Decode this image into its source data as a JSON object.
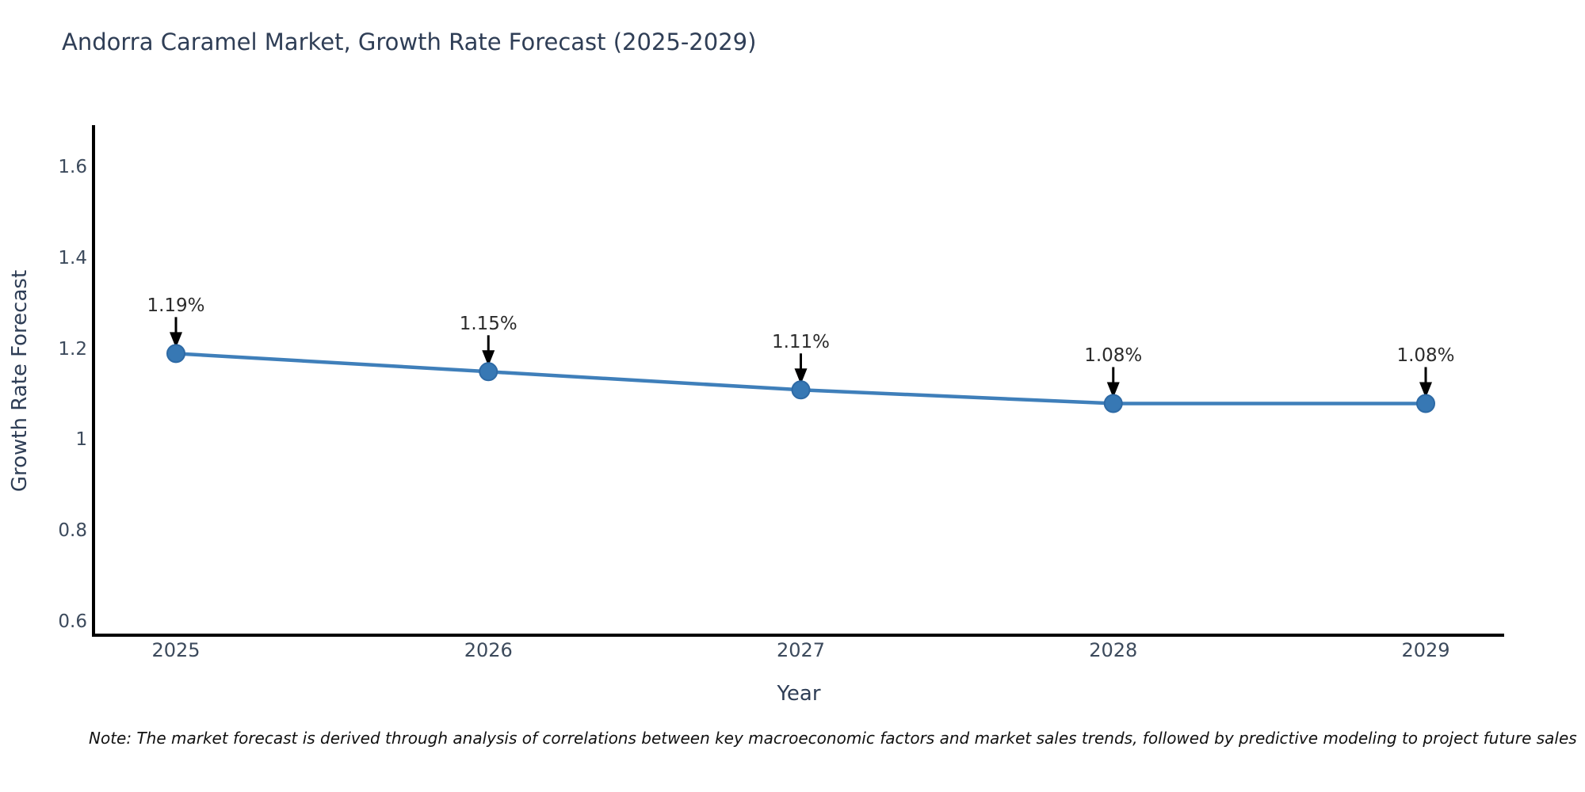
{
  "title": "Andorra Caramel Market, Growth Rate Forecast (2025-2029)",
  "note": "Note: The market forecast is derived through analysis of correlations between key macroeconomic factors and market sales trends, followed by predictive modeling to project future sales",
  "chart_data": {
    "type": "line",
    "title": "Andorra Caramel Market, Growth Rate Forecast (2025-2029)",
    "xlabel": "Year",
    "ylabel": "Growth Rate Forecast",
    "x": [
      2025,
      2026,
      2027,
      2028,
      2029
    ],
    "x_labels": [
      "2025",
      "2026",
      "2027",
      "2028",
      "2029"
    ],
    "values": [
      1.19,
      1.15,
      1.11,
      1.08,
      1.08
    ],
    "point_labels": [
      "1.19%",
      "1.15%",
      "1.11%",
      "1.08%",
      "1.08%"
    ],
    "ytick_values": [
      0.6,
      0.8,
      1.0,
      1.2,
      1.4,
      1.6
    ],
    "ytick_labels": [
      "0.6",
      "0.8",
      "1",
      "1.2",
      "1.4",
      "1.6"
    ],
    "ylim": [
      0.57,
      1.69
    ],
    "grid": false,
    "legend": "none",
    "annotation_arrows": true,
    "colors": {
      "line": "#3f7fba",
      "marker_fill": "#3778b4",
      "marker_edge": "#2e6aa5",
      "axis_line": "#000000",
      "title_text": "#2f3e56",
      "tick_text": "#3c4a5c",
      "annotation_text": "#2b2b2b",
      "arrow": "#000000",
      "note_text": "#111111"
    }
  }
}
